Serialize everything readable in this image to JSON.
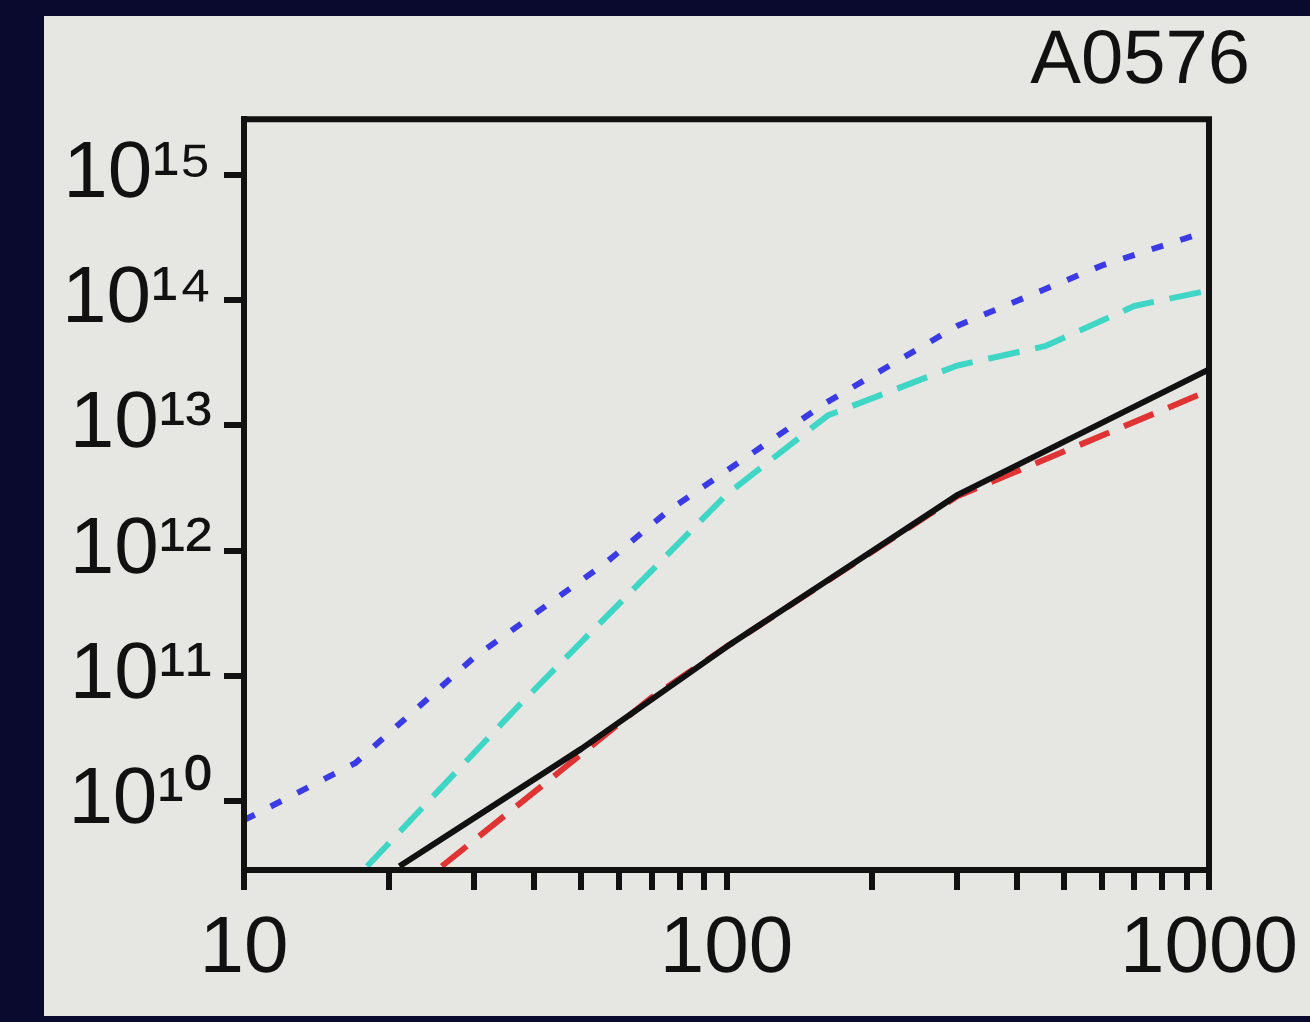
{
  "chart_data": {
    "type": "line",
    "title": "A0576",
    "series": [
      {
        "color": "#3b3be6",
        "line_style": "dotted",
        "x": [
          10,
          17,
          30,
          56,
          76,
          160,
          302,
          600,
          1000
        ],
        "values": [
          7000000000.0,
          20000000000.0,
          140000000000.0,
          790000000000.0,
          2100000000000.0,
          15000000000000.0,
          63000000000000.0,
          190000000000000.0,
          360000000000000.0
        ]
      },
      {
        "color": "#3fd6c6",
        "line_style": "dashed",
        "x": [
          18,
          37,
          100,
          162,
          300,
          457,
          700,
          1000
        ],
        "values": [
          3000000000.0,
          57000000000.0,
          2800000000000.0,
          12000000000000.0,
          30000000000000.0,
          43000000000000.0,
          90000000000000.0,
          120000000000000.0
        ]
      },
      {
        "color": "#111111",
        "line_style": "solid",
        "x": [
          21,
          50,
          100,
          302,
          1000
        ],
        "values": [
          3000000000.0,
          26000000000.0,
          170000000000.0,
          2800000000000.0,
          28000000000000.0
        ]
      },
      {
        "color": "#e03434",
        "line_style": "dashed",
        "x": [
          25.7,
          45,
          69.6,
          100,
          300,
          1000
        ],
        "values": [
          3000000000.0,
          17000000000.0,
          66000000000.0,
          170000000000.0,
          2700000000000.0,
          19000000000000.0
        ]
      }
    ],
    "log": "xy",
    "grid": false,
    "legend": false,
    "marker": "none",
    "xlim": [
      10,
      1000
    ],
    "ylim": [
      2800000000.0,
      2800000000000000.0
    ],
    "xticks": [
      10,
      {
        "value": 20,
        "label": null
      },
      {
        "value": 30,
        "label": null
      },
      {
        "value": 40,
        "label": null
      },
      {
        "value": 50,
        "label": null
      },
      {
        "value": 60,
        "label": null
      },
      {
        "value": 70,
        "label": null
      },
      {
        "value": 80,
        "label": null
      },
      {
        "value": 90,
        "label": null
      },
      100,
      {
        "value": 200,
        "label": null
      },
      {
        "value": 300,
        "label": null
      },
      {
        "value": 400,
        "label": null
      },
      {
        "value": 500,
        "label": null
      },
      {
        "value": 600,
        "label": null
      },
      {
        "value": 700,
        "label": null
      },
      {
        "value": 800,
        "label": null
      },
      {
        "value": 900,
        "label": null
      },
      1000
    ],
    "yticks": [
      {
        "value": 10000000000.0,
        "label": "10¹⁰"
      },
      {
        "value": 100000000000.0,
        "label": "10¹¹"
      },
      {
        "value": 1000000000000.0,
        "label": "10¹²"
      },
      {
        "value": 10000000000000.0,
        "label": "10¹³"
      },
      {
        "value": 100000000000000.0,
        "label": "10¹⁴"
      },
      {
        "value": 1000000000000000.0,
        "label": "10¹⁵"
      }
    ]
  }
}
